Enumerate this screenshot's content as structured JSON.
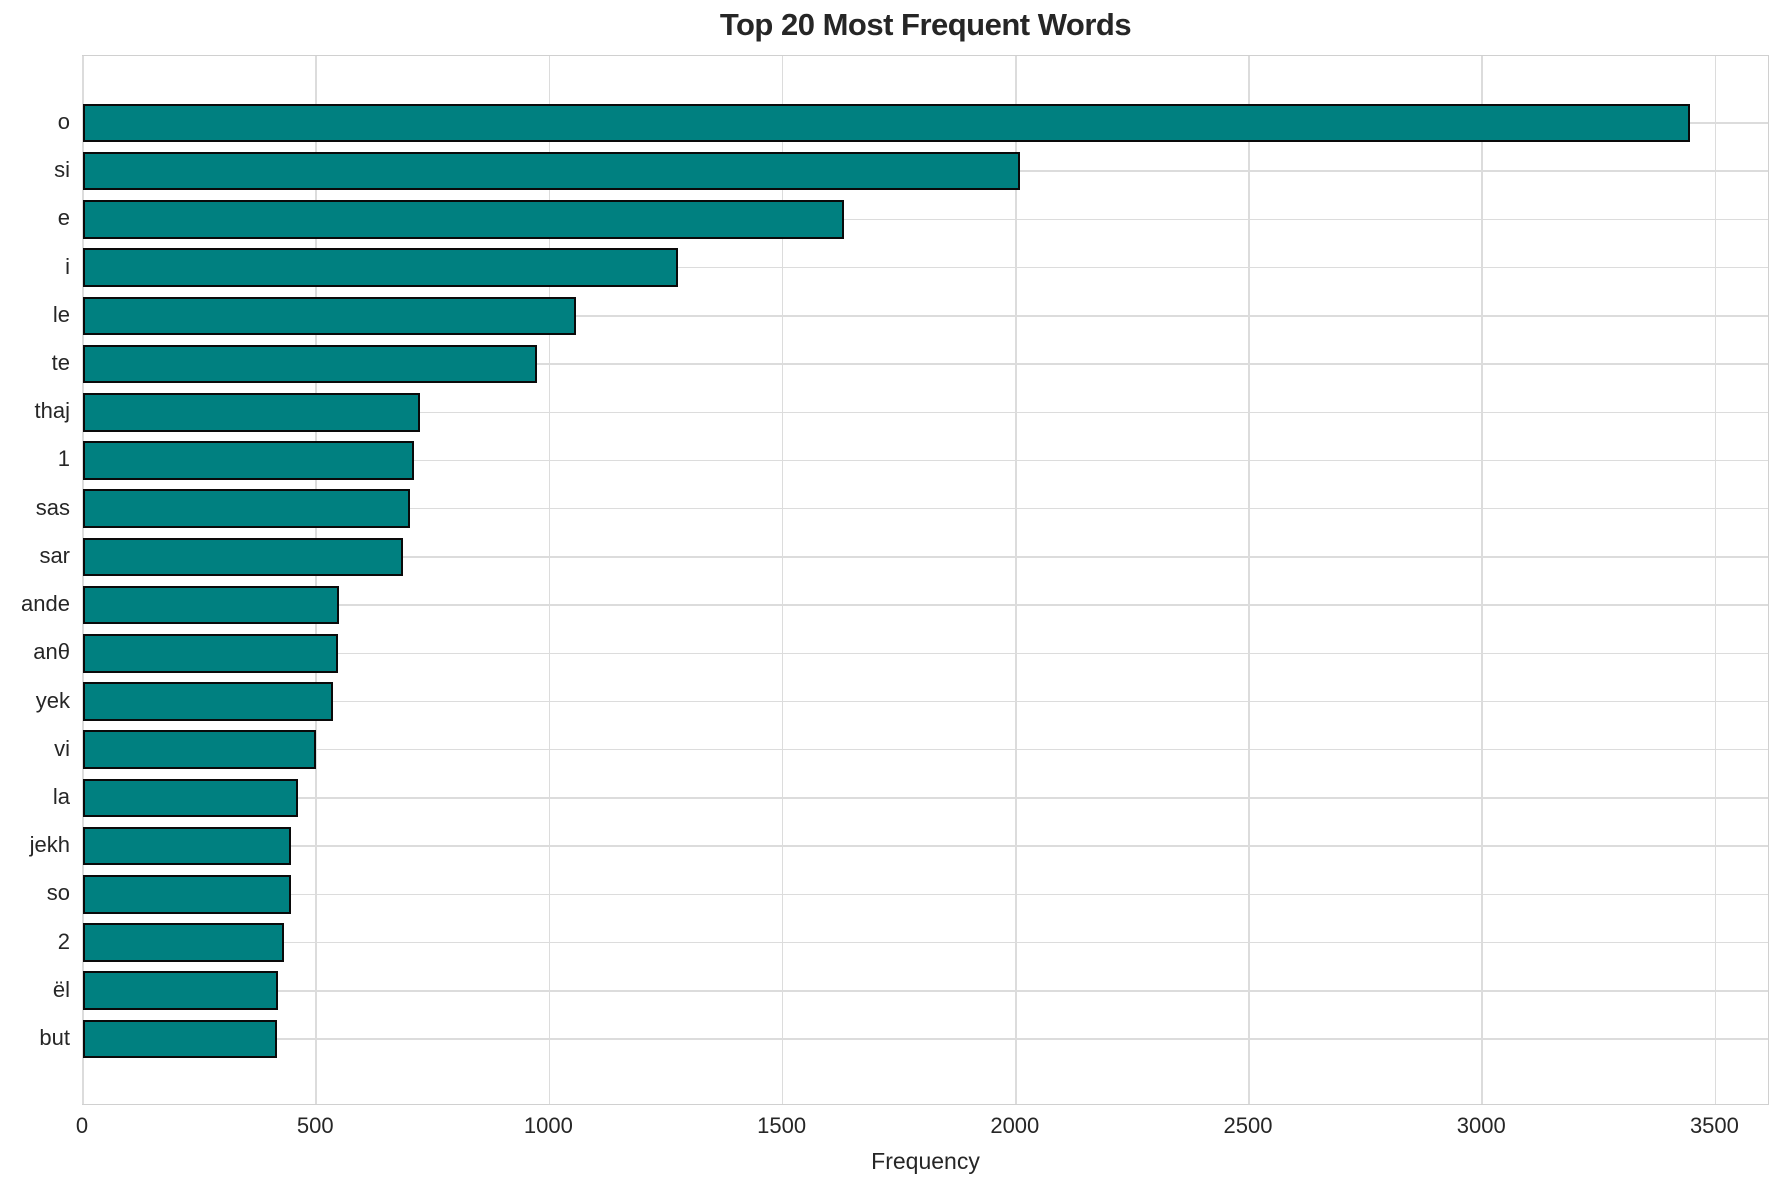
{
  "chart_data": {
    "type": "bar",
    "orientation": "horizontal",
    "title": "Top 20 Most Frequent Words",
    "xlabel": "Frequency",
    "ylabel": "",
    "categories": [
      "o",
      "si",
      "e",
      "i",
      "le",
      "te",
      "thaj",
      "1",
      "sas",
      "sar",
      "ande",
      "anθ",
      "yek",
      "vi",
      "la",
      "jekh",
      "so",
      "2",
      "ël",
      "but"
    ],
    "values": [
      3445,
      2008,
      1632,
      1276,
      1057,
      974,
      722,
      709,
      701,
      687,
      548,
      546,
      536,
      499,
      460,
      447,
      445,
      432,
      419,
      416
    ],
    "xticks": [
      0,
      500,
      1000,
      1500,
      2000,
      2500,
      3000,
      3500
    ],
    "xlim": [
      0,
      3617
    ],
    "grid": true,
    "legend": false,
    "bar_color": "#008080",
    "bar_edge_color": "#0a0a0a",
    "grid_color": "#dcdcdc",
    "background_color": "#ffffff",
    "text_color": "#262626"
  }
}
